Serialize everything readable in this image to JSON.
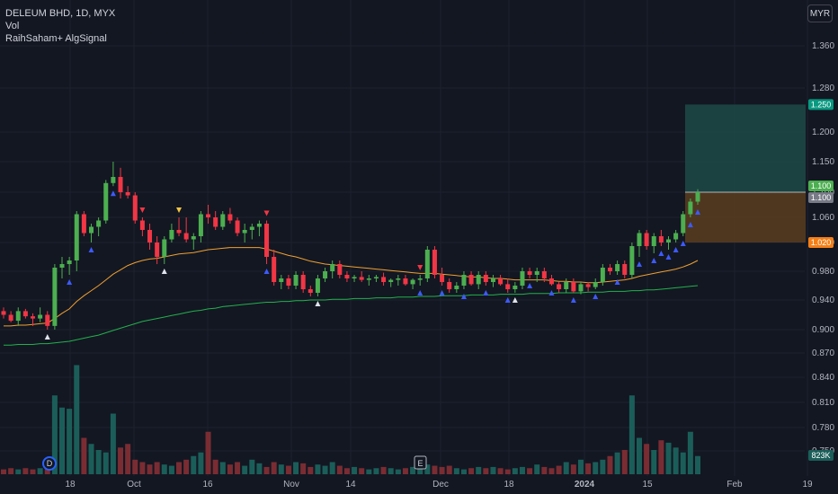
{
  "legend": {
    "symbol_line": "DELEUM BHD, 1D, MYX",
    "vol_label": "Vol",
    "indicator_label": "RaihSaham+ AlgSignal"
  },
  "currency_button": "MYR",
  "colors": {
    "background": "#131722",
    "up": "#4caf50",
    "down": "#f23645",
    "vol_up": "#1b5e59",
    "vol_down": "#7a2c33",
    "ma_fast": "#f0a030",
    "ma_slow": "#22b14c",
    "signal_blue": "#3d5afe",
    "signal_white": "#e0e3eb",
    "signal_red": "#f23645",
    "signal_yellow": "#f5c542",
    "target_zone": "#1e4d4a",
    "stop_zone": "#5b3d1f"
  },
  "chart_data": {
    "type": "candlestick",
    "title": "DELEUM BHD, 1D, MYX",
    "currency": "MYR",
    "y_ticks": [
      "1.360",
      "1.280",
      "1.200",
      "1.150",
      "1.100",
      "1.060",
      "1.020",
      "0.980",
      "0.940",
      "0.900",
      "0.870",
      "0.840",
      "0.810",
      "0.780",
      "0.750"
    ],
    "x_ticks": [
      "18",
      "Oct",
      "16",
      "Nov",
      "14",
      "Dec",
      "18",
      "2024",
      "15",
      "Feb",
      "19"
    ],
    "price_badges": [
      {
        "label": "1.250",
        "color": "#089981"
      },
      {
        "label": "1.100",
        "color": "#4caf50"
      },
      {
        "label": "1.100",
        "color": "#787b86"
      },
      {
        "label": "1.020",
        "color": "#f57f17"
      }
    ],
    "volume_badge": {
      "label": "823K",
      "color": "#1b5e59"
    },
    "markers": [
      {
        "label": "D"
      },
      {
        "label": "E"
      }
    ],
    "position": {
      "entry": 1.1,
      "target": 1.25,
      "stop": 1.02
    },
    "candles": [
      [
        0.925,
        0.93,
        0.915,
        0.92
      ],
      [
        0.92,
        0.925,
        0.91,
        0.912
      ],
      [
        0.912,
        0.93,
        0.905,
        0.925
      ],
      [
        0.925,
        0.928,
        0.915,
        0.918
      ],
      [
        0.918,
        0.922,
        0.905,
        0.915
      ],
      [
        0.915,
        0.93,
        0.91,
        0.92
      ],
      [
        0.92,
        0.925,
        0.9,
        0.905
      ],
      [
        0.905,
        0.99,
        0.9,
        0.985
      ],
      [
        0.985,
        1.0,
        0.97,
        0.99
      ],
      [
        0.99,
        1.0,
        0.975,
        0.995
      ],
      [
        0.995,
        1.07,
        0.98,
        1.065
      ],
      [
        1.065,
        1.07,
        1.03,
        1.035
      ],
      [
        1.035,
        1.05,
        1.02,
        1.045
      ],
      [
        1.045,
        1.06,
        1.03,
        1.055
      ],
      [
        1.055,
        1.12,
        1.05,
        1.115
      ],
      [
        1.115,
        1.15,
        1.11,
        1.125
      ],
      [
        1.125,
        1.14,
        1.09,
        1.1
      ],
      [
        1.1,
        1.11,
        1.09,
        1.095
      ],
      [
        1.095,
        1.1,
        1.05,
        1.055
      ],
      [
        1.055,
        1.06,
        1.03,
        1.04
      ],
      [
        1.04,
        1.05,
        1.01,
        1.02
      ],
      [
        1.02,
        1.03,
        0.99,
        1.0
      ],
      [
        1.0,
        1.03,
        0.99,
        1.025
      ],
      [
        1.025,
        1.05,
        1.02,
        1.04
      ],
      [
        1.04,
        1.06,
        1.03,
        1.035
      ],
      [
        1.035,
        1.06,
        1.02,
        1.025
      ],
      [
        1.025,
        1.035,
        1.01,
        1.03
      ],
      [
        1.03,
        1.07,
        1.02,
        1.065
      ],
      [
        1.065,
        1.08,
        1.05,
        1.06
      ],
      [
        1.06,
        1.07,
        1.04,
        1.045
      ],
      [
        1.045,
        1.07,
        1.04,
        1.065
      ],
      [
        1.065,
        1.075,
        1.05,
        1.055
      ],
      [
        1.055,
        1.06,
        1.03,
        1.035
      ],
      [
        1.035,
        1.05,
        1.02,
        1.04
      ],
      [
        1.04,
        1.05,
        1.025,
        1.045
      ],
      [
        1.045,
        1.055,
        1.03,
        1.05
      ],
      [
        1.05,
        1.055,
        0.99,
        1.0
      ],
      [
        1.0,
        1.01,
        0.96,
        0.965
      ],
      [
        0.965,
        0.975,
        0.955,
        0.97
      ],
      [
        0.97,
        0.975,
        0.955,
        0.96
      ],
      [
        0.96,
        0.98,
        0.955,
        0.975
      ],
      [
        0.975,
        0.98,
        0.95,
        0.955
      ],
      [
        0.955,
        0.96,
        0.945,
        0.95
      ],
      [
        0.95,
        0.975,
        0.945,
        0.97
      ],
      [
        0.97,
        0.985,
        0.965,
        0.98
      ],
      [
        0.98,
        0.995,
        0.97,
        0.99
      ],
      [
        0.99,
        0.995,
        0.97,
        0.975
      ],
      [
        0.975,
        0.98,
        0.965,
        0.97
      ],
      [
        0.97,
        0.975,
        0.965,
        0.972
      ],
      [
        0.972,
        0.98,
        0.965,
        0.968
      ],
      [
        0.968,
        0.975,
        0.96,
        0.97
      ],
      [
        0.97,
        0.975,
        0.965,
        0.972
      ],
      [
        0.972,
        0.978,
        0.96,
        0.965
      ],
      [
        0.965,
        0.97,
        0.958,
        0.968
      ],
      [
        0.968,
        0.975,
        0.96,
        0.97
      ],
      [
        0.97,
        0.975,
        0.96,
        0.962
      ],
      [
        0.962,
        0.97,
        0.955,
        0.968
      ],
      [
        0.968,
        0.975,
        0.96,
        0.97
      ],
      [
        0.97,
        1.015,
        0.965,
        1.01
      ],
      [
        1.01,
        1.015,
        0.97,
        0.975
      ],
      [
        0.975,
        0.985,
        0.96,
        0.965
      ],
      [
        0.965,
        0.97,
        0.95,
        0.955
      ],
      [
        0.955,
        0.965,
        0.95,
        0.96
      ],
      [
        0.96,
        0.98,
        0.955,
        0.975
      ],
      [
        0.975,
        0.98,
        0.96,
        0.962
      ],
      [
        0.962,
        0.98,
        0.955,
        0.975
      ],
      [
        0.975,
        0.98,
        0.96,
        0.965
      ],
      [
        0.965,
        0.975,
        0.958,
        0.97
      ],
      [
        0.97,
        0.975,
        0.96,
        0.962
      ],
      [
        0.962,
        0.97,
        0.95,
        0.955
      ],
      [
        0.955,
        0.965,
        0.95,
        0.96
      ],
      [
        0.96,
        0.985,
        0.955,
        0.98
      ],
      [
        0.98,
        0.985,
        0.97,
        0.975
      ],
      [
        0.975,
        0.985,
        0.965,
        0.98
      ],
      [
        0.98,
        0.985,
        0.965,
        0.97
      ],
      [
        0.97,
        0.975,
        0.96,
        0.962
      ],
      [
        0.962,
        0.965,
        0.95,
        0.955
      ],
      [
        0.955,
        0.97,
        0.95,
        0.965
      ],
      [
        0.965,
        0.97,
        0.95,
        0.952
      ],
      [
        0.952,
        0.965,
        0.948,
        0.962
      ],
      [
        0.962,
        0.965,
        0.952,
        0.958
      ],
      [
        0.958,
        0.97,
        0.955,
        0.965
      ],
      [
        0.965,
        0.99,
        0.96,
        0.985
      ],
      [
        0.985,
        0.99,
        0.975,
        0.98
      ],
      [
        0.98,
        0.995,
        0.975,
        0.99
      ],
      [
        0.99,
        0.995,
        0.97,
        0.975
      ],
      [
        0.975,
        1.02,
        0.97,
        1.015
      ],
      [
        1.015,
        1.04,
        1.0,
        1.035
      ],
      [
        1.035,
        1.04,
        1.01,
        1.015
      ],
      [
        1.015,
        1.035,
        1.005,
        1.03
      ],
      [
        1.03,
        1.04,
        1.015,
        1.02
      ],
      [
        1.02,
        1.03,
        1.01,
        1.025
      ],
      [
        1.025,
        1.04,
        1.02,
        1.035
      ],
      [
        1.035,
        1.07,
        1.03,
        1.065
      ],
      [
        1.065,
        1.09,
        1.06,
        1.085
      ],
      [
        1.085,
        1.105,
        1.08,
        1.1
      ]
    ],
    "volumes": [
      0.04,
      0.05,
      0.04,
      0.05,
      0.04,
      0.05,
      0.06,
      0.65,
      0.55,
      0.54,
      0.9,
      0.3,
      0.25,
      0.2,
      0.18,
      0.5,
      0.22,
      0.25,
      0.12,
      0.1,
      0.08,
      0.1,
      0.08,
      0.07,
      0.1,
      0.12,
      0.15,
      0.18,
      0.35,
      0.12,
      0.1,
      0.08,
      0.1,
      0.07,
      0.12,
      0.09,
      0.06,
      0.1,
      0.08,
      0.07,
      0.1,
      0.09,
      0.06,
      0.08,
      0.07,
      0.1,
      0.07,
      0.05,
      0.06,
      0.05,
      0.04,
      0.05,
      0.06,
      0.05,
      0.04,
      0.05,
      0.06,
      0.05,
      0.08,
      0.07,
      0.06,
      0.07,
      0.05,
      0.04,
      0.05,
      0.06,
      0.05,
      0.06,
      0.05,
      0.04,
      0.05,
      0.06,
      0.05,
      0.08,
      0.06,
      0.05,
      0.07,
      0.1,
      0.08,
      0.12,
      0.09,
      0.1,
      0.12,
      0.15,
      0.18,
      0.2,
      0.65,
      0.3,
      0.25,
      0.2,
      0.28,
      0.26,
      0.22,
      0.18,
      0.35,
      0.15
    ],
    "ma_fast": [
      0.905,
      0.905,
      0.906,
      0.906,
      0.907,
      0.908,
      0.909,
      0.915,
      0.922,
      0.928,
      0.938,
      0.946,
      0.953,
      0.96,
      0.968,
      0.976,
      0.982,
      0.988,
      0.992,
      0.995,
      0.997,
      0.998,
      1.0,
      1.002,
      1.004,
      1.005,
      1.006,
      1.008,
      1.01,
      1.011,
      1.012,
      1.013,
      1.013,
      1.013,
      1.013,
      1.013,
      1.011,
      1.008,
      1.005,
      1.002,
      1.0,
      0.997,
      0.994,
      0.992,
      0.99,
      0.989,
      0.988,
      0.987,
      0.986,
      0.985,
      0.984,
      0.983,
      0.982,
      0.981,
      0.98,
      0.979,
      0.978,
      0.977,
      0.977,
      0.977,
      0.976,
      0.975,
      0.974,
      0.973,
      0.972,
      0.972,
      0.971,
      0.97,
      0.97,
      0.969,
      0.968,
      0.968,
      0.968,
      0.968,
      0.968,
      0.967,
      0.966,
      0.966,
      0.965,
      0.965,
      0.964,
      0.964,
      0.965,
      0.966,
      0.967,
      0.968,
      0.97,
      0.973,
      0.975,
      0.977,
      0.979,
      0.981,
      0.983,
      0.986,
      0.99,
      0.995
    ],
    "ma_slow": [
      0.88,
      0.88,
      0.881,
      0.881,
      0.881,
      0.882,
      0.882,
      0.883,
      0.884,
      0.885,
      0.887,
      0.889,
      0.891,
      0.893,
      0.896,
      0.899,
      0.902,
      0.905,
      0.908,
      0.911,
      0.913,
      0.915,
      0.917,
      0.919,
      0.921,
      0.923,
      0.925,
      0.926,
      0.928,
      0.929,
      0.931,
      0.932,
      0.933,
      0.934,
      0.935,
      0.936,
      0.937,
      0.937,
      0.938,
      0.938,
      0.939,
      0.939,
      0.94,
      0.94,
      0.94,
      0.941,
      0.941,
      0.941,
      0.942,
      0.942,
      0.942,
      0.943,
      0.943,
      0.943,
      0.944,
      0.944,
      0.944,
      0.945,
      0.945,
      0.945,
      0.946,
      0.946,
      0.946,
      0.946,
      0.947,
      0.947,
      0.947,
      0.947,
      0.948,
      0.948,
      0.948,
      0.948,
      0.949,
      0.949,
      0.949,
      0.949,
      0.95,
      0.95,
      0.95,
      0.95,
      0.951,
      0.951,
      0.951,
      0.952,
      0.952,
      0.952,
      0.953,
      0.953,
      0.954,
      0.954,
      0.955,
      0.956,
      0.957,
      0.958,
      0.959,
      0.96
    ]
  }
}
